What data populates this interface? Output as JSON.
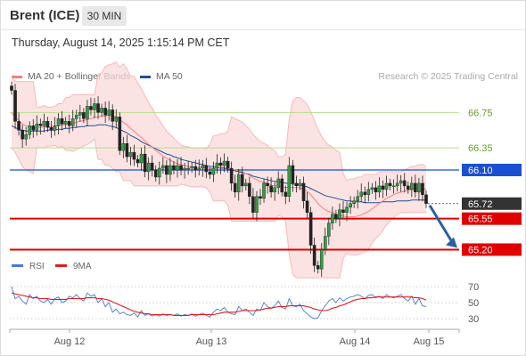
{
  "header": {
    "instrument": "Brent (ICE)",
    "timeframe": "30 MIN",
    "datetime": "Thursday, August 14, 2025 1:15:14 PM CET"
  },
  "legend": {
    "items": [
      {
        "label": "MA 20 + Bollinger Bands",
        "color": "#f08080"
      },
      {
        "label": "MA 50",
        "color": "#1f4e96"
      }
    ],
    "research": "Research © 2025 Trading Central"
  },
  "chart_data": [
    {
      "type": "candlestick",
      "title": "Brent (ICE) 30 MIN",
      "x_tick_labels": [
        "Aug 12",
        "Aug 13",
        "Aug 14",
        "Aug 15"
      ],
      "price_levels": [
        {
          "value": 66.75,
          "label": "66.75",
          "kind": "resistance",
          "color": "#b7dc8e"
        },
        {
          "value": 66.35,
          "label": "66.35",
          "kind": "resistance",
          "color": "#b7dc8e"
        },
        {
          "value": 66.1,
          "label": "66.10",
          "kind": "pivot",
          "color": "#1a4fd0"
        },
        {
          "value": 65.72,
          "label": "65.72",
          "kind": "last",
          "color": "#333333"
        },
        {
          "value": 65.55,
          "label": "65.55",
          "kind": "support",
          "color": "#e00000"
        },
        {
          "value": 65.2,
          "label": "65.20",
          "kind": "support",
          "color": "#e00000"
        }
      ],
      "projection": {
        "from": 65.72,
        "to": 65.2,
        "color": "#2b5fa8"
      },
      "close_prices": [
        67.0,
        66.65,
        66.55,
        66.45,
        66.5,
        66.6,
        66.55,
        66.62,
        66.6,
        66.65,
        66.58,
        66.55,
        66.6,
        66.68,
        66.62,
        66.65,
        66.6,
        66.68,
        66.72,
        66.75,
        66.68,
        66.82,
        66.78,
        66.85,
        66.75,
        66.8,
        66.72,
        66.78,
        66.65,
        66.7,
        66.32,
        66.4,
        66.25,
        66.3,
        66.22,
        66.18,
        66.28,
        66.08,
        66.18,
        66.1,
        66.02,
        66.12,
        66.15,
        66.05,
        66.15,
        66.1,
        66.15,
        66.1,
        66.12,
        66.12,
        66.14,
        66.1,
        66.12,
        66.15,
        66.08,
        66.05,
        66.12,
        66.18,
        66.15,
        66.2,
        66.12,
        65.95,
        65.85,
        66.05,
        65.92,
        65.95,
        65.8,
        65.62,
        65.8,
        65.78,
        65.95,
        65.92,
        65.85,
        65.9,
        66.0,
        65.85,
        65.8,
        66.15,
        65.95,
        65.92,
        65.95,
        65.75,
        65.62,
        65.25,
        65.02,
        64.98,
        65.2,
        65.35,
        65.5,
        65.6,
        65.55,
        65.65,
        65.62,
        65.68,
        65.72,
        65.75,
        65.8,
        65.85,
        65.82,
        65.88,
        65.9,
        65.85,
        65.92,
        65.88,
        65.95,
        65.92,
        65.92,
        65.95,
        65.98,
        65.92,
        65.88,
        65.95,
        65.85,
        65.95,
        65.82,
        65.72
      ],
      "ma20": [
        66.75,
        66.7,
        66.66,
        66.62,
        66.6,
        66.59,
        66.58,
        66.58,
        66.58,
        66.59,
        66.59,
        66.59,
        66.6,
        66.6,
        66.61,
        66.62,
        66.62,
        66.63,
        66.64,
        66.65,
        66.66,
        66.67,
        66.68,
        66.7,
        66.7,
        66.71,
        66.71,
        66.72,
        66.71,
        66.7,
        66.67,
        66.64,
        66.61,
        66.57,
        66.54,
        66.5,
        66.47,
        66.43,
        66.39,
        66.36,
        66.32,
        66.29,
        66.26,
        66.23,
        66.21,
        66.19,
        66.17,
        66.16,
        66.15,
        66.14,
        66.13,
        66.13,
        66.13,
        66.13,
        66.12,
        66.12,
        66.12,
        66.12,
        66.13,
        66.13,
        66.12,
        66.11,
        66.1,
        66.09,
        66.08,
        66.06,
        66.04,
        66.01,
        65.99,
        65.97,
        65.96,
        65.95,
        65.93,
        65.92,
        65.92,
        65.91,
        65.9,
        65.91,
        65.9,
        65.9,
        65.9,
        65.88,
        65.86,
        65.82,
        65.77,
        65.72,
        65.68,
        65.65,
        65.63,
        65.62,
        65.6,
        65.59,
        65.58,
        65.57,
        65.57,
        65.57,
        65.58,
        65.59,
        65.61,
        65.63,
        65.66,
        65.69,
        65.72,
        65.75,
        65.78,
        65.8,
        65.82,
        65.84,
        65.85,
        65.86,
        65.87,
        65.88,
        65.88,
        65.89,
        65.89,
        65.88
      ],
      "ma50": [
        66.6,
        66.58,
        66.56,
        66.55,
        66.54,
        66.54,
        66.54,
        66.54,
        66.54,
        66.54,
        66.55,
        66.55,
        66.55,
        66.56,
        66.56,
        66.57,
        66.57,
        66.58,
        66.58,
        66.59,
        66.59,
        66.6,
        66.6,
        66.6,
        66.61,
        66.61,
        66.61,
        66.6,
        66.59,
        66.58,
        66.56,
        66.54,
        66.52,
        66.49,
        66.47,
        66.45,
        66.42,
        66.4,
        66.38,
        66.36,
        66.34,
        66.32,
        66.3,
        66.28,
        66.27,
        66.25,
        66.24,
        66.22,
        66.21,
        66.2,
        66.19,
        66.18,
        66.17,
        66.16,
        66.15,
        66.14,
        66.14,
        66.13,
        66.12,
        66.12,
        66.11,
        66.1,
        66.09,
        66.08,
        66.07,
        66.06,
        66.05,
        66.03,
        66.02,
        66.01,
        66.0,
        65.99,
        65.98,
        65.97,
        65.97,
        65.96,
        65.95,
        65.95,
        65.94,
        65.94,
        65.93,
        65.92,
        65.91,
        65.89,
        65.87,
        65.85,
        65.83,
        65.81,
        65.8,
        65.79,
        65.78,
        65.77,
        65.76,
        65.75,
        65.75,
        65.74,
        65.74,
        65.74,
        65.73,
        65.73,
        65.73,
        65.73,
        65.73,
        65.74,
        65.74,
        65.74,
        65.74,
        65.75,
        65.75,
        65.75,
        65.75,
        65.76,
        65.76,
        65.76,
        65.76,
        65.76
      ]
    },
    {
      "type": "line",
      "title": "RSI",
      "series": [
        {
          "name": "RSI",
          "color": "#4a78d8",
          "values": [
            70,
            55,
            58,
            52,
            48,
            60,
            55,
            58,
            52,
            50,
            54,
            48,
            55,
            57,
            50,
            52,
            58,
            56,
            60,
            55,
            52,
            62,
            58,
            60,
            50,
            55,
            45,
            50,
            38,
            42,
            36,
            38,
            35,
            34,
            37,
            32,
            40,
            34,
            36,
            33,
            35,
            33,
            36,
            34,
            35,
            34,
            36,
            33,
            35,
            34,
            36,
            33,
            35,
            37,
            34,
            32,
            38,
            42,
            40,
            44,
            38,
            36,
            35,
            45,
            40,
            42,
            38,
            34,
            42,
            40,
            50,
            45,
            43,
            46,
            52,
            44,
            42,
            55,
            46,
            45,
            48,
            40,
            36,
            32,
            30,
            31,
            40,
            46,
            52,
            55,
            50,
            56,
            52,
            55,
            57,
            58,
            60,
            58,
            55,
            59,
            60,
            56,
            58,
            55,
            60,
            57,
            56,
            58,
            60,
            55,
            52,
            58,
            48,
            55,
            46,
            45
          ]
        },
        {
          "name": "9MA",
          "color": "#e31a1c",
          "values": [
            62,
            61,
            60,
            59,
            58,
            57,
            56,
            56,
            55,
            55,
            55,
            54,
            54,
            54,
            54,
            54,
            55,
            55,
            55,
            55,
            55,
            56,
            56,
            56,
            55,
            55,
            54,
            53,
            51,
            49,
            47,
            45,
            43,
            41,
            39,
            38,
            37,
            36,
            36,
            35,
            35,
            35,
            35,
            35,
            35,
            34,
            34,
            34,
            34,
            34,
            35,
            35,
            35,
            35,
            35,
            35,
            35,
            36,
            37,
            38,
            38,
            38,
            38,
            39,
            40,
            40,
            40,
            40,
            40,
            41,
            42,
            43,
            43,
            44,
            45,
            45,
            45,
            46,
            46,
            46,
            46,
            46,
            45,
            44,
            42,
            41,
            40,
            40,
            41,
            43,
            44,
            46,
            47,
            49,
            51,
            53,
            54,
            55,
            55,
            56,
            56,
            57,
            57,
            57,
            57,
            57,
            57,
            57,
            57,
            57,
            57,
            57,
            56,
            56,
            55,
            53
          ]
        }
      ],
      "y_tick_labels": [
        "70",
        "50",
        "30"
      ],
      "ylim": [
        20,
        80
      ]
    }
  ]
}
